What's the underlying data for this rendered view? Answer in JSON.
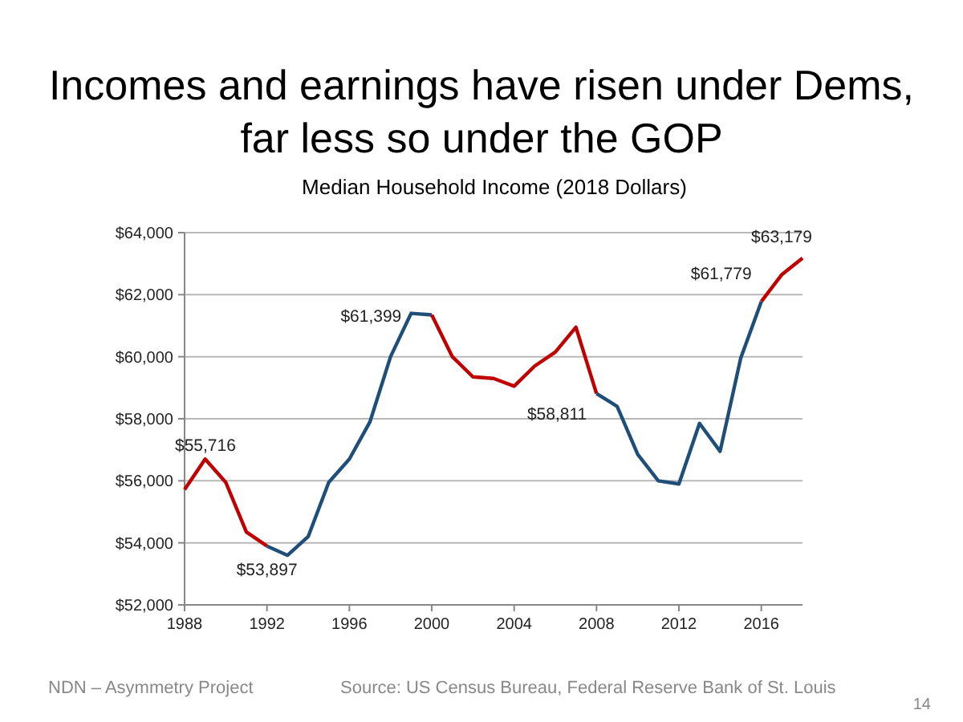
{
  "chart_data": {
    "type": "line",
    "title": "Incomes and earnings have risen under Dems,\nfar less so under the GOP",
    "subtitle": "Median Household Income (2018 Dollars)",
    "series": [
      {
        "color": "#c00000",
        "x": [
          1988,
          1989,
          1990,
          1991,
          1992
        ],
        "values": [
          55716,
          56700,
          55950,
          54350,
          53897
        ]
      },
      {
        "color": "#1f4e79",
        "x": [
          1992,
          1993,
          1994,
          1995,
          1996,
          1997,
          1998,
          1999,
          2000
        ],
        "values": [
          53897,
          53600,
          54200,
          55950,
          56700,
          57900,
          60000,
          61399,
          61350
        ]
      },
      {
        "color": "#c00000",
        "x": [
          2000,
          2001,
          2002,
          2003,
          2004,
          2005,
          2006,
          2007,
          2008
        ],
        "values": [
          61350,
          60000,
          59350,
          59300,
          59050,
          59700,
          60150,
          60950,
          58811
        ]
      },
      {
        "color": "#1f4e79",
        "x": [
          2008,
          2009,
          2010,
          2011,
          2012,
          2013,
          2014,
          2015,
          2016
        ],
        "values": [
          58811,
          58400,
          56850,
          56000,
          55900,
          57850,
          56950,
          59950,
          61779
        ]
      },
      {
        "color": "#c00000",
        "x": [
          2016,
          2017,
          2018
        ],
        "values": [
          61779,
          62650,
          63179
        ]
      }
    ],
    "xlim": [
      1988,
      2018
    ],
    "xticks": [
      1988,
      1992,
      1996,
      2000,
      2004,
      2008,
      2012,
      2016
    ],
    "ylim": [
      52000,
      64000
    ],
    "yticks": [
      {
        "value": 52000,
        "label": "$52,000"
      },
      {
        "value": 54000,
        "label": "$54,000"
      },
      {
        "value": 56000,
        "label": "$56,000"
      },
      {
        "value": 58000,
        "label": "$58,000"
      },
      {
        "value": 60000,
        "label": "$60,000"
      },
      {
        "value": 62000,
        "label": "$62,000"
      },
      {
        "value": 64000,
        "label": "$64,000"
      }
    ],
    "grid": "y",
    "marker": "none",
    "line_style": "solid",
    "annotations": [
      {
        "text": "$55,716",
        "x": 1988,
        "y": 55716
      },
      {
        "text": "$53,897",
        "x": 1992,
        "y": 53897
      },
      {
        "text": "$61,399",
        "x": 1999,
        "y": 61399
      },
      {
        "text": "$58,811",
        "x": 2008,
        "y": 58811
      },
      {
        "text": "$61,779",
        "x": 2016,
        "y": 61779
      },
      {
        "text": "$63,179",
        "x": 2018,
        "y": 63179
      },
      "NDN – Asymmetry Project",
      "Source: US Census Bureau, Federal Reserve Bank of St. Louis",
      "14"
    ]
  }
}
